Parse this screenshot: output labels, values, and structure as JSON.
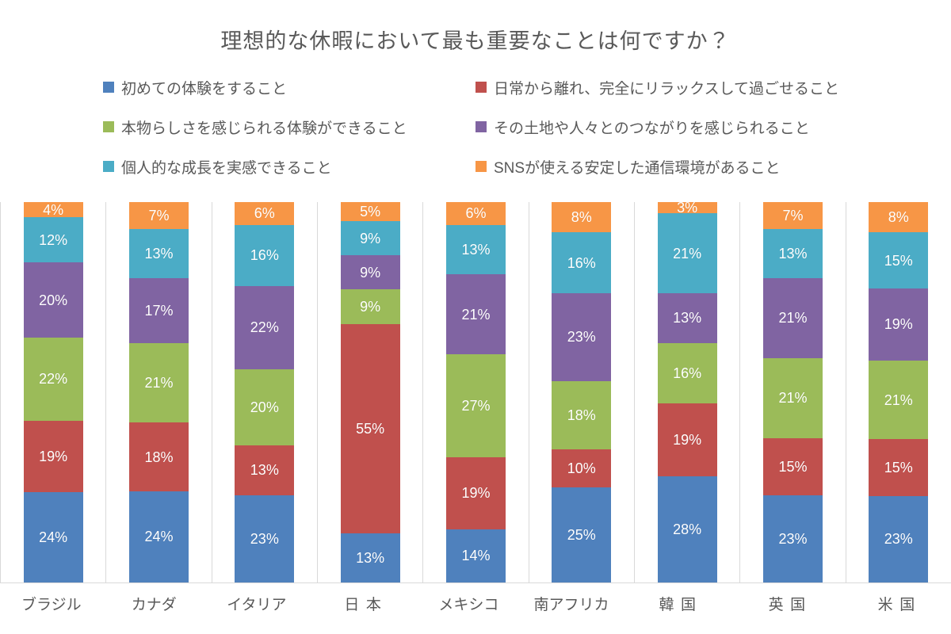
{
  "title": "理想的な休暇において最も重要なことは何ですか？",
  "chart_data": {
    "type": "bar",
    "subtype": "100%-stacked-column",
    "title": "理想的な休暇において最も重要なことは何ですか？",
    "value_suffix": "%",
    "legend_position": "top",
    "grid": "vertical-category-separators",
    "ylim": [
      0,
      100
    ],
    "categories": [
      "ブラジル",
      "カナダ",
      "イタリア",
      "日本",
      "メキシコ",
      "南アフリカ",
      "韓国",
      "英国",
      "米国"
    ],
    "series": [
      {
        "name": "初めての体験をすること",
        "color": "#4F81BD",
        "values": [
          24,
          24,
          23,
          13,
          14,
          25,
          28,
          23,
          23
        ]
      },
      {
        "name": "日常から離れ、完全にリラックスして過ごせること",
        "color": "#C0504D",
        "values": [
          19,
          18,
          13,
          55,
          19,
          10,
          19,
          15,
          15
        ]
      },
      {
        "name": "本物らしさを感じられる体験ができること",
        "color": "#9BBB59",
        "values": [
          22,
          21,
          20,
          9,
          27,
          18,
          16,
          21,
          21
        ]
      },
      {
        "name": "その土地や人々とのつながりを感じられること",
        "color": "#8064A2",
        "values": [
          20,
          17,
          22,
          9,
          21,
          23,
          13,
          21,
          19
        ]
      },
      {
        "name": "個人的な成長を実感できること",
        "color": "#4BACC6",
        "values": [
          12,
          13,
          16,
          9,
          13,
          16,
          21,
          13,
          15
        ]
      },
      {
        "name": "SNSが使える安定した通信環境があること",
        "color": "#F79646",
        "values": [
          4,
          7,
          6,
          5,
          6,
          8,
          3,
          7,
          8
        ]
      }
    ]
  },
  "colors": {
    "text": "#595959",
    "gridline": "#D9D9D9",
    "background": "#FFFFFF",
    "data_label": "#FFFFFF"
  }
}
